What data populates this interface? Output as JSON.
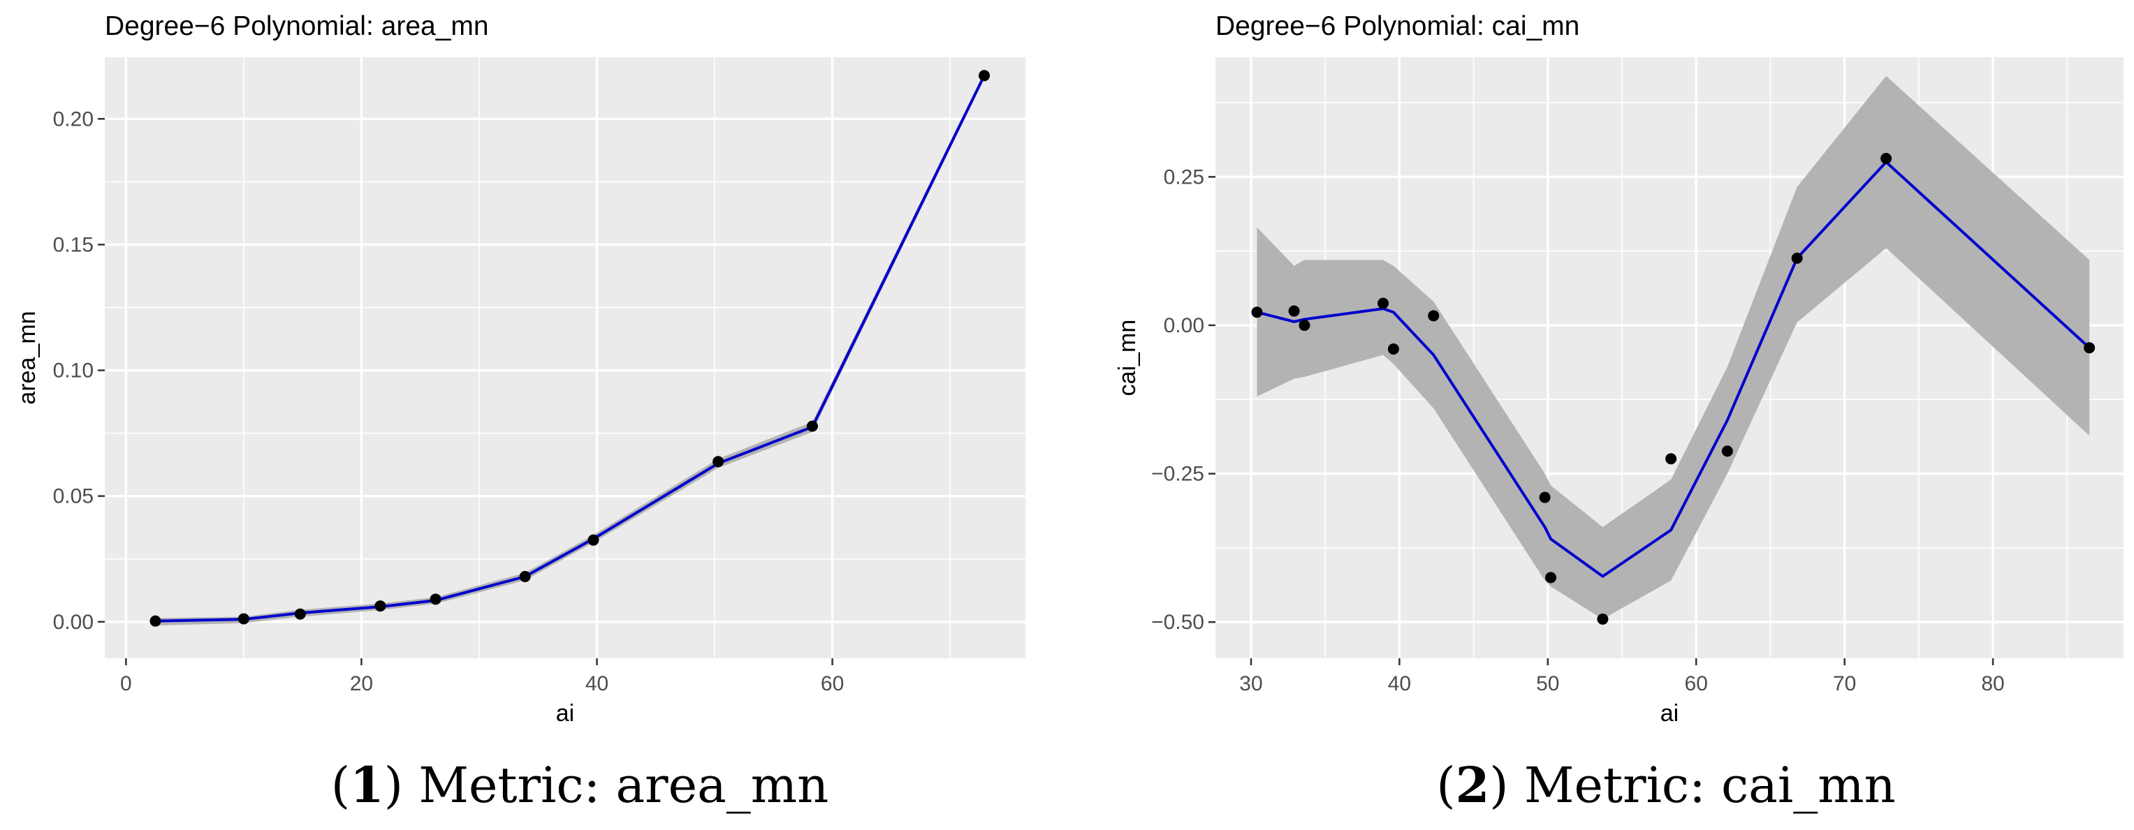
{
  "figure": {
    "captions": [
      {
        "num": "1",
        "text": "Metric: area_mn"
      },
      {
        "num": "2",
        "text": "Metric: cai_mn"
      }
    ]
  },
  "colors": {
    "panel_bg": "#EBEBEB",
    "grid": "#FFFFFF",
    "ribbon": "#B3B3B3",
    "line": "#0000CD",
    "point": "#000000",
    "text": "#000000",
    "tick_text": "#4D4D4D"
  },
  "chart_data": [
    {
      "type": "line",
      "title": "Degree−6 Polynomial: area_mn",
      "xlabel": "ai",
      "ylabel": "area_mn",
      "xlim": [
        -1.8,
        76.4
      ],
      "ylim": [
        -0.0145,
        0.2245
      ],
      "xticks": [
        0,
        20,
        40,
        60
      ],
      "xtick_labels": [
        "0",
        "20",
        "40",
        "60"
      ],
      "yticks": [
        0.0,
        0.05,
        0.1,
        0.15,
        0.2
      ],
      "ytick_labels": [
        "0.00",
        "0.05",
        "0.10",
        "0.15",
        "0.20"
      ],
      "grid": true,
      "points": [
        {
          "x": 2.5,
          "y": 0.0003
        },
        {
          "x": 10.0,
          "y": 0.0012
        },
        {
          "x": 14.8,
          "y": 0.0031
        },
        {
          "x": 21.6,
          "y": 0.0063
        },
        {
          "x": 26.3,
          "y": 0.009
        },
        {
          "x": 33.9,
          "y": 0.018
        },
        {
          "x": 39.7,
          "y": 0.0325
        },
        {
          "x": 50.3,
          "y": 0.0637
        },
        {
          "x": 58.3,
          "y": 0.0778
        },
        {
          "x": 72.9,
          "y": 0.2172
        }
      ],
      "fit": [
        {
          "x": 2.5,
          "y": 0.0003
        },
        {
          "x": 10.0,
          "y": 0.001
        },
        {
          "x": 14.8,
          "y": 0.0035
        },
        {
          "x": 21.6,
          "y": 0.006
        },
        {
          "x": 26.3,
          "y": 0.0085
        },
        {
          "x": 33.9,
          "y": 0.018
        },
        {
          "x": 39.7,
          "y": 0.033
        },
        {
          "x": 50.3,
          "y": 0.063
        },
        {
          "x": 58.3,
          "y": 0.0775
        },
        {
          "x": 72.9,
          "y": 0.2172
        }
      ],
      "ribbon": [
        {
          "x": 2.5,
          "lo": -0.0015,
          "hi": 0.0015
        },
        {
          "x": 10.0,
          "lo": -0.0005,
          "hi": 0.002
        },
        {
          "x": 14.8,
          "lo": 0.002,
          "hi": 0.0048
        },
        {
          "x": 21.6,
          "lo": 0.0047,
          "hi": 0.0073
        },
        {
          "x": 26.3,
          "lo": 0.0072,
          "hi": 0.0098
        },
        {
          "x": 33.9,
          "lo": 0.0165,
          "hi": 0.0195
        },
        {
          "x": 39.7,
          "lo": 0.0315,
          "hi": 0.0345
        },
        {
          "x": 50.3,
          "lo": 0.0612,
          "hi": 0.0648
        },
        {
          "x": 58.3,
          "lo": 0.0755,
          "hi": 0.0795
        },
        {
          "x": 72.9,
          "lo": 0.216,
          "hi": 0.2184
        }
      ]
    },
    {
      "type": "line",
      "title": "Degree−6 Polynomial: cai_mn",
      "xlabel": "ai",
      "ylabel": "cai_mn",
      "xlim": [
        27.6,
        88.8
      ],
      "ylim": [
        -0.561,
        0.4515
      ],
      "xticks": [
        30,
        40,
        50,
        60,
        70,
        80
      ],
      "xtick_labels": [
        "30",
        "40",
        "50",
        "60",
        "70",
        "80"
      ],
      "yticks": [
        -0.5,
        -0.25,
        0.0,
        0.25
      ],
      "ytick_labels": [
        "−0.50",
        "−0.25",
        "0.00",
        "0.25"
      ],
      "grid": true,
      "points": [
        {
          "x": 30.4,
          "y": 0.022
        },
        {
          "x": 32.9,
          "y": 0.024
        },
        {
          "x": 33.6,
          "y": 0.0
        },
        {
          "x": 38.9,
          "y": 0.037
        },
        {
          "x": 39.6,
          "y": -0.04
        },
        {
          "x": 42.3,
          "y": 0.016
        },
        {
          "x": 49.8,
          "y": -0.29
        },
        {
          "x": 50.2,
          "y": -0.425
        },
        {
          "x": 53.7,
          "y": -0.495
        },
        {
          "x": 58.3,
          "y": -0.225
        },
        {
          "x": 62.1,
          "y": -0.212
        },
        {
          "x": 66.8,
          "y": 0.113
        },
        {
          "x": 72.8,
          "y": 0.281
        },
        {
          "x": 86.5,
          "y": -0.038
        }
      ],
      "fit": [
        {
          "x": 30.4,
          "y": 0.022
        },
        {
          "x": 32.9,
          "y": 0.006
        },
        {
          "x": 33.6,
          "y": 0.01
        },
        {
          "x": 38.9,
          "y": 0.028
        },
        {
          "x": 39.6,
          "y": 0.022
        },
        {
          "x": 42.3,
          "y": -0.05
        },
        {
          "x": 49.8,
          "y": -0.34
        },
        {
          "x": 50.2,
          "y": -0.36
        },
        {
          "x": 53.7,
          "y": -0.423
        },
        {
          "x": 58.3,
          "y": -0.345
        },
        {
          "x": 62.1,
          "y": -0.16
        },
        {
          "x": 66.8,
          "y": 0.113
        },
        {
          "x": 72.8,
          "y": 0.275
        },
        {
          "x": 86.5,
          "y": -0.038
        }
      ],
      "ribbon": [
        {
          "x": 30.4,
          "lo": -0.12,
          "hi": 0.165
        },
        {
          "x": 32.9,
          "lo": -0.09,
          "hi": 0.1
        },
        {
          "x": 33.6,
          "lo": -0.087,
          "hi": 0.11
        },
        {
          "x": 38.9,
          "lo": -0.05,
          "hi": 0.11
        },
        {
          "x": 39.6,
          "lo": -0.065,
          "hi": 0.1
        },
        {
          "x": 42.3,
          "lo": -0.14,
          "hi": 0.04
        },
        {
          "x": 49.8,
          "lo": -0.43,
          "hi": -0.25
        },
        {
          "x": 50.2,
          "lo": -0.44,
          "hi": -0.27
        },
        {
          "x": 53.7,
          "lo": -0.495,
          "hi": -0.34
        },
        {
          "x": 58.3,
          "lo": -0.43,
          "hi": -0.26
        },
        {
          "x": 62.1,
          "lo": -0.25,
          "hi": -0.07
        },
        {
          "x": 66.8,
          "lo": 0.005,
          "hi": 0.233
        },
        {
          "x": 72.8,
          "lo": 0.13,
          "hi": 0.42
        },
        {
          "x": 86.5,
          "lo": -0.186,
          "hi": 0.11
        }
      ]
    }
  ]
}
